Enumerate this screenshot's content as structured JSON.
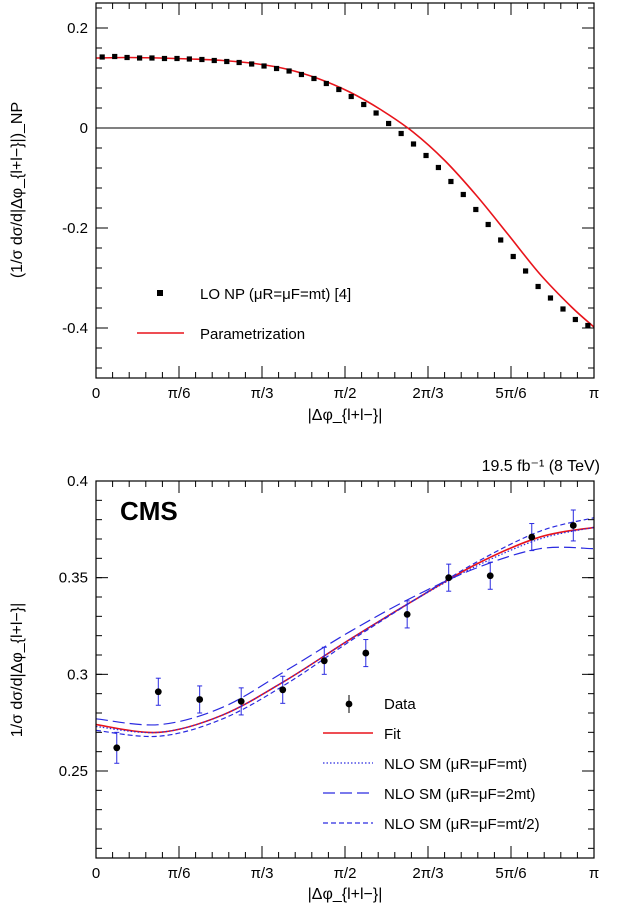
{
  "chart_data": [
    {
      "type": "scatter",
      "xlabel": "|Δφ_{l+l−}|",
      "ylabel": "(1/σ dσ/d|Δφ_{l+l−}|)_NP",
      "xlim": [
        0,
        3.14159
      ],
      "ylim": [
        -0.5,
        0.25
      ],
      "xticks": [
        "0",
        "π/6",
        "π/3",
        "π/2",
        "2π/3",
        "5π/6",
        "π"
      ],
      "yticks": [
        "0.2",
        "0",
        "-0.2",
        "-0.4"
      ],
      "ytick_values": [
        0.2,
        0,
        -0.2,
        -0.4
      ],
      "zero_line": true,
      "series": [
        {
          "name": "LO NP (μR=μF=mt) [4]",
          "kind": "points",
          "color": "#000000",
          "x": [
            0.039,
            0.118,
            0.196,
            0.275,
            0.353,
            0.432,
            0.511,
            0.589,
            0.668,
            0.746,
            0.825,
            0.903,
            0.982,
            1.06,
            1.139,
            1.218,
            1.296,
            1.375,
            1.453,
            1.532,
            1.61,
            1.689,
            1.767,
            1.846,
            1.925,
            2.003,
            2.082,
            2.16,
            2.239,
            2.317,
            2.396,
            2.474,
            2.553,
            2.632,
            2.71,
            2.789,
            2.867,
            2.946,
            3.024,
            3.103
          ],
          "y": [
            0.142,
            0.143,
            0.141,
            0.14,
            0.14,
            0.139,
            0.139,
            0.138,
            0.137,
            0.135,
            0.133,
            0.131,
            0.128,
            0.124,
            0.119,
            0.114,
            0.107,
            0.099,
            0.089,
            0.077,
            0.063,
            0.047,
            0.03,
            0.009,
            -0.011,
            -0.032,
            -0.055,
            -0.079,
            -0.107,
            -0.133,
            -0.163,
            -0.193,
            -0.224,
            -0.257,
            -0.286,
            -0.317,
            -0.34,
            -0.362,
            -0.383,
            -0.395
          ]
        },
        {
          "name": "Parametrization",
          "kind": "line",
          "color": "#e8141b",
          "x": [
            0,
            0.2,
            0.4,
            0.6,
            0.8,
            1.0,
            1.2,
            1.4,
            1.6,
            1.8,
            2.0,
            2.2,
            2.4,
            2.6,
            2.8,
            3.0,
            3.14159
          ],
          "y": [
            0.14,
            0.141,
            0.14,
            0.138,
            0.135,
            0.129,
            0.118,
            0.099,
            0.072,
            0.036,
            -0.008,
            -0.065,
            -0.135,
            -0.213,
            -0.292,
            -0.358,
            -0.398
          ]
        }
      ]
    },
    {
      "type": "scatter",
      "title": "19.5 fb⁻¹ (8 TeV)",
      "label": "CMS",
      "xlabel": "|Δφ_{l+l−}|",
      "ylabel": "1/σ dσ/d|Δφ_{l+l−}|",
      "xlim": [
        0,
        3.14159
      ],
      "ylim": [
        0.205,
        0.4
      ],
      "xticks": [
        "0",
        "π/6",
        "π/3",
        "π/2",
        "2π/3",
        "5π/6",
        "π"
      ],
      "yticks": [
        "0.4",
        "0.35",
        "0.3",
        "0.25"
      ],
      "ytick_values": [
        0.4,
        0.35,
        0.3,
        0.25
      ],
      "series": [
        {
          "name": "Data",
          "kind": "points_err",
          "color": "#000000",
          "x": [
            0.131,
            0.393,
            0.654,
            0.916,
            1.178,
            1.44,
            1.702,
            1.963,
            2.225,
            2.487,
            2.749,
            3.011
          ],
          "y": [
            0.262,
            0.291,
            0.287,
            0.286,
            0.292,
            0.307,
            0.311,
            0.331,
            0.35,
            0.351,
            0.371,
            0.377
          ],
          "err": [
            0.008,
            0.007,
            0.007,
            0.007,
            0.007,
            0.007,
            0.007,
            0.007,
            0.007,
            0.007,
            0.007,
            0.008
          ]
        },
        {
          "name": "Fit",
          "kind": "line",
          "color": "#e8141b",
          "x": [
            0,
            0.4,
            0.8,
            1.2,
            1.6,
            2.0,
            2.4,
            2.8,
            3.14159
          ],
          "y": [
            0.274,
            0.27,
            0.279,
            0.297,
            0.318,
            0.338,
            0.357,
            0.371,
            0.376
          ]
        },
        {
          "name": "NLO SM (μR=μF=mt)",
          "kind": "line",
          "style": "dotted",
          "color": "#2a2ae0",
          "x": [
            0,
            0.4,
            0.8,
            1.2,
            1.6,
            2.0,
            2.4,
            2.8,
            3.14159
          ],
          "y": [
            0.273,
            0.27,
            0.279,
            0.297,
            0.318,
            0.338,
            0.356,
            0.37,
            0.376
          ]
        },
        {
          "name": "NLO SM (μR=μF=2mt)",
          "kind": "line",
          "style": "longdash",
          "color": "#2a2ae0",
          "x": [
            0,
            0.4,
            0.8,
            1.2,
            1.6,
            2.0,
            2.4,
            2.8,
            3.14159
          ],
          "y": [
            0.277,
            0.274,
            0.283,
            0.302,
            0.322,
            0.34,
            0.355,
            0.365,
            0.365
          ]
        },
        {
          "name": "NLO SM (μR=μF=mt/2)",
          "kind": "line",
          "style": "dashed",
          "color": "#2a2ae0",
          "x": [
            0,
            0.4,
            0.8,
            1.2,
            1.6,
            2.0,
            2.4,
            2.8,
            3.14159
          ],
          "y": [
            0.271,
            0.268,
            0.277,
            0.295,
            0.317,
            0.338,
            0.358,
            0.374,
            0.381
          ]
        }
      ]
    }
  ]
}
